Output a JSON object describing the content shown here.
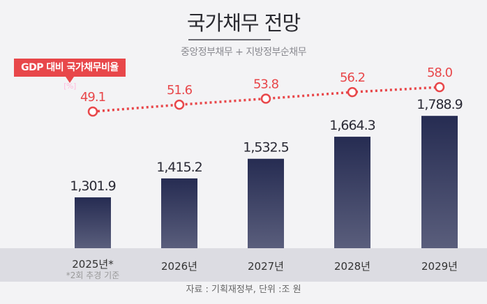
{
  "chart_data": {
    "type": "bar",
    "title": "국가채무 전망",
    "subtitle": "중앙정부채무 + 지방정부순채무",
    "categories": [
      "2025년*",
      "2026년",
      "2027년",
      "2028년",
      "2029년"
    ],
    "category_note": "*2회 추경 기준",
    "series": [
      {
        "values": [
          1301.9,
          1415.2,
          1532.5,
          1664.3,
          1788.9
        ],
        "labels": [
          "1,301.9",
          "1,415.2",
          "1,532.5",
          "1,664.3",
          "1,788.9"
        ],
        "color": "#2f3558"
      },
      {
        "name": "GDP 대비 국가채무비율",
        "unit": "[%]",
        "type": "line",
        "values": [
          49.1,
          51.6,
          53.8,
          56.2,
          58.0
        ],
        "labels": [
          "49.1",
          "51.6",
          "53.8",
          "56.2",
          "58.0"
        ],
        "color": "#e8474a"
      }
    ],
    "grid": false,
    "source": "자료 : 기획재정부, 단위 :조 원"
  }
}
